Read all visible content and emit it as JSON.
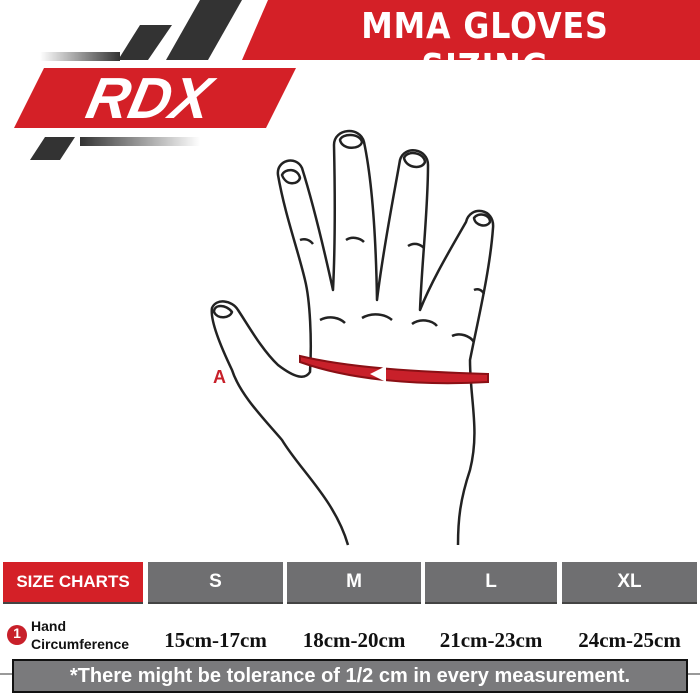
{
  "header": {
    "title": "MMA GLOVES SIZING",
    "brand": "RDX"
  },
  "diagram": {
    "marker_label": "A"
  },
  "table": {
    "header_label": "SIZE CHARTS",
    "sizes": [
      "S",
      "M",
      "L",
      "XL"
    ],
    "row": {
      "number": "1",
      "label_line1": "Hand",
      "label_line2": "Circumference",
      "values": [
        "15cm-17cm",
        "18cm-20cm",
        "21cm-23cm",
        "24cm-25cm"
      ]
    }
  },
  "note": "*There might be tolerance of 1/2 cm in every measurement.",
  "colors": {
    "brand_red": "#d42027",
    "gray": "#6f6f71",
    "dark": "#333333"
  }
}
